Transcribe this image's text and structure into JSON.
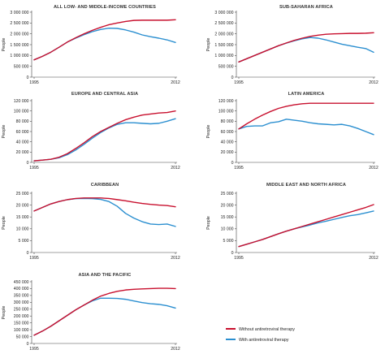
{
  "colors": {
    "without": "#c8102e",
    "with": "#2b8fd0",
    "axis": "#444444"
  },
  "legend": {
    "without_label": "Without antiretroviral therapy",
    "with_label": "With antiretroviral therapy"
  },
  "chart_data": [
    {
      "type": "line",
      "title": "ALL LOW- AND MIDDLE-INCOME COUNTRIES",
      "ylabel": "People",
      "x": [
        1995,
        1996,
        1997,
        1998,
        1999,
        2000,
        2001,
        2002,
        2003,
        2004,
        2005,
        2006,
        2007,
        2008,
        2009,
        2010,
        2011,
        2012
      ],
      "xticks": [
        "1995",
        "2012"
      ],
      "ylim": [
        0,
        3000000
      ],
      "yticks": [
        "0",
        "500 000",
        "1 000 000",
        "1 500 000",
        "2 000 000",
        "2 500 000",
        "3 000 000"
      ],
      "series": [
        {
          "name": "Without antiretroviral therapy",
          "values": [
            800000,
            960000,
            1150000,
            1380000,
            1620000,
            1820000,
            2000000,
            2160000,
            2300000,
            2420000,
            2500000,
            2570000,
            2620000,
            2630000,
            2630000,
            2630000,
            2630000,
            2650000
          ]
        },
        {
          "name": "With antiretroviral therapy",
          "values": [
            800000,
            960000,
            1150000,
            1380000,
            1620000,
            1800000,
            1960000,
            2100000,
            2200000,
            2260000,
            2250000,
            2180000,
            2080000,
            1950000,
            1870000,
            1800000,
            1720000,
            1600000
          ]
        }
      ]
    },
    {
      "type": "line",
      "title": "SUB-SAHARAN AFRICA",
      "ylabel": "People",
      "x": [
        1995,
        1996,
        1997,
        1998,
        1999,
        2000,
        2001,
        2002,
        2003,
        2004,
        2005,
        2006,
        2007,
        2008,
        2009,
        2010,
        2011,
        2012
      ],
      "xticks": [
        "1995",
        "2012"
      ],
      "ylim": [
        0,
        3000000
      ],
      "yticks": [
        "0",
        "500 000",
        "1 000 000",
        "1 500 000",
        "2 000 000",
        "2 500 000",
        "3 000 000"
      ],
      "series": [
        {
          "name": "Without antiretroviral therapy",
          "values": [
            700000,
            850000,
            1000000,
            1150000,
            1300000,
            1450000,
            1580000,
            1700000,
            1800000,
            1880000,
            1940000,
            1980000,
            2000000,
            2010000,
            2020000,
            2020000,
            2030000,
            2050000
          ]
        },
        {
          "name": "With antiretroviral therapy",
          "values": [
            700000,
            850000,
            1000000,
            1150000,
            1300000,
            1450000,
            1570000,
            1680000,
            1770000,
            1830000,
            1800000,
            1720000,
            1620000,
            1520000,
            1450000,
            1380000,
            1320000,
            1150000
          ]
        }
      ]
    },
    {
      "type": "line",
      "title": "EUROPE AND CENTRAL ASIA",
      "ylabel": "People",
      "x": [
        1995,
        1996,
        1997,
        1998,
        1999,
        2000,
        2001,
        2002,
        2003,
        2004,
        2005,
        2006,
        2007,
        2008,
        2009,
        2010,
        2011,
        2012
      ],
      "xticks": [
        "1995",
        "2012"
      ],
      "ylim": [
        0,
        120000
      ],
      "yticks": [
        "0",
        "20 000",
        "40 000",
        "60 000",
        "80 000",
        "100 000",
        "120 000"
      ],
      "series": [
        {
          "name": "Without antiretroviral therapy",
          "values": [
            3000,
            4500,
            6000,
            10000,
            17000,
            27000,
            38000,
            50000,
            60000,
            68000,
            76000,
            83000,
            88000,
            92000,
            94000,
            96000,
            97000,
            100000
          ]
        },
        {
          "name": "With antiretroviral therapy",
          "values": [
            3000,
            4500,
            6000,
            9000,
            15000,
            24000,
            35000,
            47000,
            58000,
            67000,
            74000,
            77000,
            77000,
            76000,
            75000,
            76000,
            80000,
            85000
          ]
        }
      ]
    },
    {
      "type": "line",
      "title": "LATIN AMERICA",
      "ylabel": "People",
      "x": [
        1995,
        1996,
        1997,
        1998,
        1999,
        2000,
        2001,
        2002,
        2003,
        2004,
        2005,
        2006,
        2007,
        2008,
        2009,
        2010,
        2011,
        2012
      ],
      "xticks": [
        "1995",
        "2012"
      ],
      "ylim": [
        0,
        120000
      ],
      "yticks": [
        "0",
        "20 000",
        "40 000",
        "60 000",
        "80 000",
        "100 000",
        "120 000"
      ],
      "series": [
        {
          "name": "Without antiretroviral therapy",
          "values": [
            65000,
            75000,
            84000,
            92000,
            99000,
            105000,
            109000,
            112000,
            114000,
            115000,
            115000,
            115000,
            115000,
            115000,
            115000,
            115000,
            115000,
            115000
          ]
        },
        {
          "name": "With antiretroviral therapy",
          "values": [
            65000,
            70000,
            71000,
            71000,
            77000,
            79000,
            84000,
            82000,
            80000,
            77000,
            75000,
            74000,
            73000,
            74000,
            71000,
            66000,
            60000,
            54000
          ]
        }
      ]
    },
    {
      "type": "line",
      "title": "CARIBBEAN",
      "ylabel": "People",
      "x": [
        1995,
        1996,
        1997,
        1998,
        1999,
        2000,
        2001,
        2002,
        2003,
        2004,
        2005,
        2006,
        2007,
        2008,
        2009,
        2010,
        2011,
        2012
      ],
      "xticks": [
        "1995",
        "2012"
      ],
      "ylim": [
        0,
        25000
      ],
      "yticks": [
        "0",
        "5 000",
        "10 000",
        "15 000",
        "20 000",
        "25 000"
      ],
      "series": [
        {
          "name": "Without antiretroviral therapy",
          "values": [
            17500,
            19000,
            20500,
            21500,
            22300,
            22800,
            23000,
            23000,
            23000,
            22800,
            22300,
            21800,
            21200,
            20700,
            20300,
            20000,
            19800,
            19300
          ]
        },
        {
          "name": "With antiretroviral therapy",
          "values": [
            17500,
            19000,
            20500,
            21500,
            22300,
            22700,
            22800,
            22700,
            22400,
            21500,
            19500,
            16500,
            14500,
            13000,
            12000,
            11800,
            12000,
            11000
          ]
        }
      ]
    },
    {
      "type": "line",
      "title": "MIDDLE EAST AND NORTH AFRICA",
      "ylabel": "People",
      "x": [
        1995,
        1996,
        1997,
        1998,
        1999,
        2000,
        2001,
        2002,
        2003,
        2004,
        2005,
        2006,
        2007,
        2008,
        2009,
        2010,
        2011,
        2012
      ],
      "xticks": [
        "1995",
        "2012"
      ],
      "ylim": [
        0,
        25000
      ],
      "yticks": [
        "0",
        "5 000",
        "10 000",
        "15 000",
        "20 000",
        "25 000"
      ],
      "series": [
        {
          "name": "Without antiretroviral therapy",
          "values": [
            2500,
            3500,
            4500,
            5500,
            6700,
            7900,
            9000,
            10000,
            11000,
            12000,
            13000,
            14000,
            15000,
            16000,
            17000,
            18000,
            19000,
            20200
          ]
        },
        {
          "name": "With antiretroviral therapy",
          "values": [
            2500,
            3500,
            4500,
            5500,
            6700,
            7900,
            9000,
            10000,
            10800,
            11600,
            12500,
            13200,
            14000,
            14800,
            15500,
            16000,
            16700,
            17500
          ]
        }
      ]
    },
    {
      "type": "line",
      "title": "ASIA AND THE PACIFIC",
      "ylabel": "People",
      "x": [
        1995,
        1996,
        1997,
        1998,
        1999,
        2000,
        2001,
        2002,
        2003,
        2004,
        2005,
        2006,
        2007,
        2008,
        2009,
        2010,
        2011,
        2012
      ],
      "xticks": [
        "1995",
        "2012"
      ],
      "ylim": [
        0,
        450000
      ],
      "yticks": [
        "0",
        "50 000",
        "100 000",
        "150 000",
        "200 000",
        "250 000",
        "300 000",
        "350 000",
        "400 000",
        "450 000"
      ],
      "series": [
        {
          "name": "Without antiretroviral therapy",
          "values": [
            60000,
            90000,
            125000,
            165000,
            205000,
            245000,
            280000,
            315000,
            345000,
            365000,
            380000,
            390000,
            395000,
            398000,
            400000,
            402000,
            402000,
            400000
          ]
        },
        {
          "name": "With antiretroviral therapy",
          "values": [
            60000,
            90000,
            125000,
            165000,
            205000,
            245000,
            280000,
            310000,
            330000,
            330000,
            328000,
            322000,
            310000,
            298000,
            290000,
            285000,
            275000,
            258000
          ]
        }
      ]
    }
  ]
}
